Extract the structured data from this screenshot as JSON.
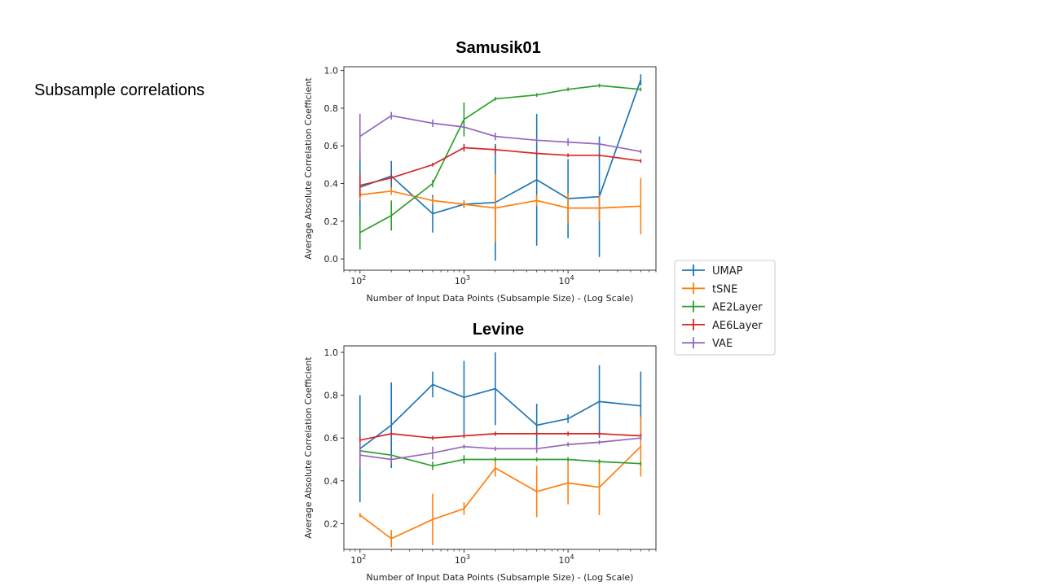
{
  "slide": {
    "heading": "Subsample correlations"
  },
  "colors": {
    "UMAP": "#1f77b4",
    "tSNE": "#ff7f0e",
    "AE2Layer": "#2ca02c",
    "AE6Layer": "#d62728",
    "VAE": "#9467bd"
  },
  "legend": {
    "entries": [
      "UMAP",
      "tSNE",
      "AE2Layer",
      "AE6Layer",
      "VAE"
    ],
    "placement": "right, between the two charts"
  },
  "chart_data": [
    {
      "type": "line",
      "title": "Samusik01",
      "xlabel": "Number of Input Data Points (Subsample Size) - (Log Scale)",
      "ylabel": "Average Absolute Correlation Coefficient",
      "xscale": "log",
      "xlim": [
        70,
        70000
      ],
      "ylim": [
        -0.06,
        1.02
      ],
      "xticks": [
        {
          "base": "10",
          "exp": "2",
          "value": 100
        },
        {
          "base": "10",
          "exp": "3",
          "value": 1000
        },
        {
          "base": "10",
          "exp": "4",
          "value": 10000
        }
      ],
      "yticks": [
        "0.0",
        "0.2",
        "0.4",
        "0.6",
        "0.8",
        "1.0"
      ],
      "x": [
        100,
        200,
        500,
        1000,
        2000,
        5000,
        10000,
        20000,
        50000
      ],
      "series": [
        {
          "name": "UMAP",
          "values": [
            0.38,
            0.44,
            0.24,
            0.29,
            0.3,
            0.42,
            0.32,
            0.33,
            0.95
          ],
          "errors": [
            0.18,
            0.08,
            0.1,
            0.02,
            0.31,
            0.35,
            0.21,
            0.32,
            0.03
          ]
        },
        {
          "name": "tSNE",
          "values": [
            0.34,
            0.36,
            0.31,
            0.29,
            0.27,
            0.31,
            0.27,
            0.27,
            0.28
          ],
          "errors": [
            0.03,
            0.02,
            0.02,
            0.02,
            0.18,
            0.03,
            0.08,
            0.07,
            0.15
          ]
        },
        {
          "name": "AE2Layer",
          "values": [
            0.14,
            0.23,
            0.4,
            0.74,
            0.85,
            0.87,
            0.9,
            0.92,
            0.9
          ],
          "errors": [
            0.09,
            0.08,
            0.02,
            0.09,
            0.01,
            0.01,
            0.01,
            0.01,
            0.01
          ]
        },
        {
          "name": "AE6Layer",
          "values": [
            0.39,
            0.43,
            0.5,
            0.59,
            0.58,
            0.56,
            0.55,
            0.55,
            0.52
          ],
          "errors": [
            0.06,
            0.02,
            0.01,
            0.02,
            0.02,
            0.01,
            0.01,
            0.01,
            0.01
          ]
        },
        {
          "name": "VAE",
          "values": [
            0.65,
            0.76,
            0.72,
            0.7,
            0.65,
            0.63,
            0.62,
            0.61,
            0.57
          ],
          "errors": [
            0.12,
            0.02,
            0.02,
            0.01,
            0.02,
            0.01,
            0.02,
            0.01,
            0.01
          ]
        }
      ]
    },
    {
      "type": "line",
      "title": "Levine",
      "xlabel": "Number of Input Data Points (Subsample Size) -  (Log Scale)",
      "ylabel": "Average Absolute Correlation Coefficient",
      "xscale": "log",
      "xlim": [
        70,
        70000
      ],
      "ylim": [
        0.08,
        1.03
      ],
      "xticks": [
        {
          "base": "10",
          "exp": "2",
          "value": 100
        },
        {
          "base": "10",
          "exp": "3",
          "value": 1000
        },
        {
          "base": "10",
          "exp": "4",
          "value": 10000
        }
      ],
      "yticks": [
        "0.2",
        "0.4",
        "0.6",
        "0.8",
        "1.0"
      ],
      "x": [
        100,
        200,
        500,
        1000,
        2000,
        5000,
        10000,
        20000,
        50000
      ],
      "series": [
        {
          "name": "UMAP",
          "values": [
            0.55,
            0.66,
            0.85,
            0.79,
            0.83,
            0.66,
            0.69,
            0.77,
            0.75
          ],
          "errors": [
            0.25,
            0.2,
            0.06,
            0.17,
            0.17,
            0.1,
            0.02,
            0.17,
            0.16
          ]
        },
        {
          "name": "tSNE",
          "values": [
            0.24,
            0.13,
            0.22,
            0.27,
            0.46,
            0.35,
            0.39,
            0.37,
            0.56
          ],
          "errors": [
            0.01,
            0.04,
            0.12,
            0.03,
            0.04,
            0.12,
            0.1,
            0.13,
            0.14
          ]
        },
        {
          "name": "AE2Layer",
          "values": [
            0.54,
            0.52,
            0.47,
            0.5,
            0.5,
            0.5,
            0.5,
            0.49,
            0.48
          ],
          "errors": [
            0.02,
            0.01,
            0.02,
            0.02,
            0.01,
            0.01,
            0.01,
            0.01,
            0.01
          ]
        },
        {
          "name": "AE6Layer",
          "values": [
            0.59,
            0.62,
            0.6,
            0.61,
            0.62,
            0.62,
            0.62,
            0.62,
            0.61
          ],
          "errors": [
            0.02,
            0.01,
            0.01,
            0.01,
            0.01,
            0.01,
            0.01,
            0.01,
            0.01
          ]
        },
        {
          "name": "VAE",
          "values": [
            0.52,
            0.5,
            0.53,
            0.56,
            0.55,
            0.55,
            0.57,
            0.58,
            0.6
          ],
          "errors": [
            0.06,
            0.02,
            0.03,
            0.01,
            0.01,
            0.02,
            0.01,
            0.01,
            0.01
          ]
        }
      ]
    }
  ]
}
